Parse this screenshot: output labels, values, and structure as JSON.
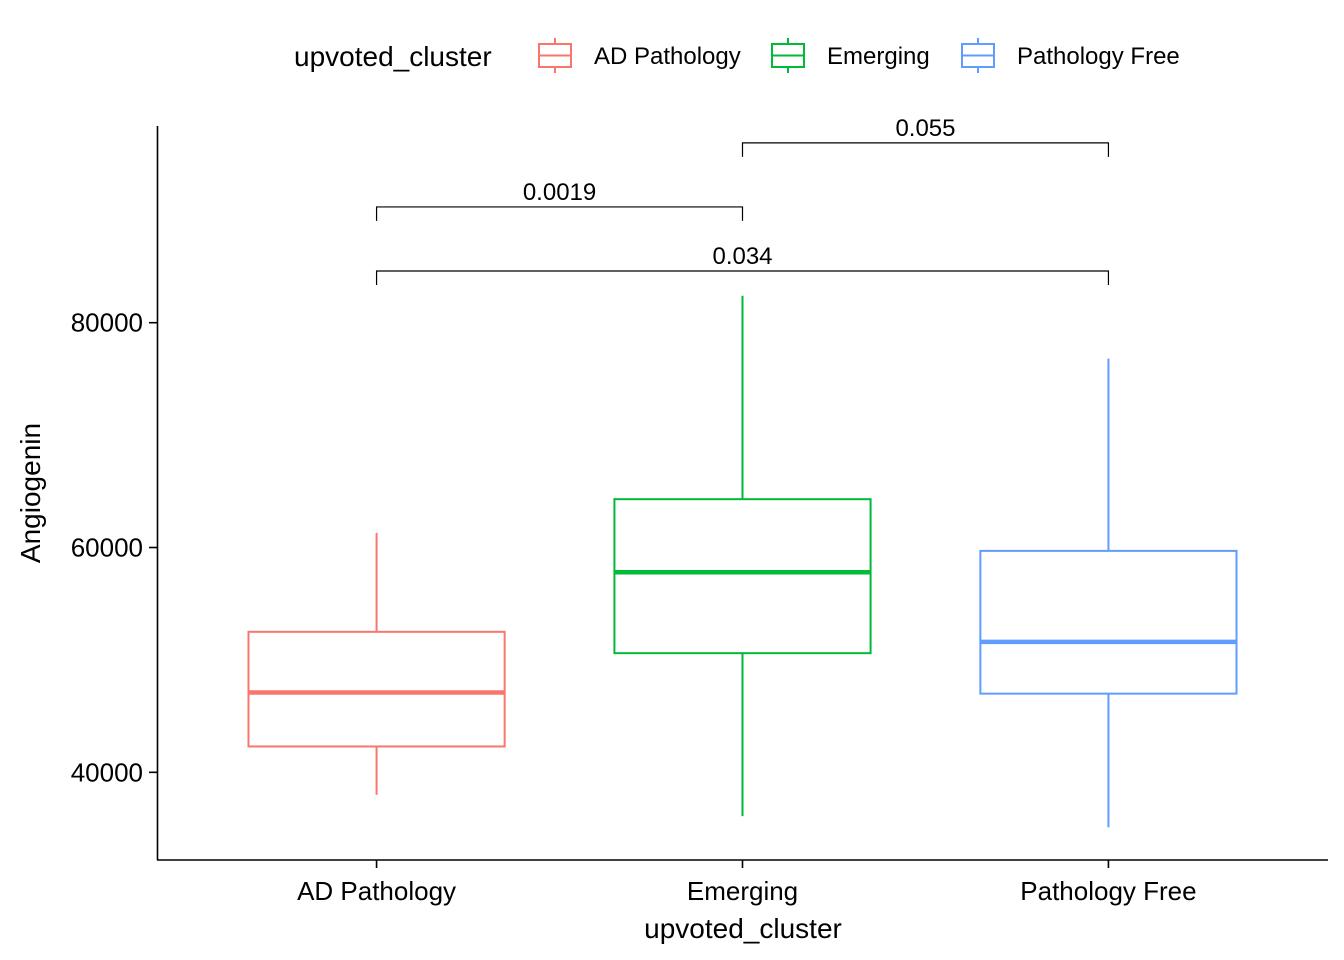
{
  "chart_data": {
    "type": "boxplot",
    "xlabel": "upvoted_cluster",
    "ylabel": "Angiogenin",
    "ylim": [
      32200,
      97500
    ],
    "yticks": [
      40000,
      60000,
      80000
    ],
    "categories": [
      "AD Pathology",
      "Emerging",
      "Pathology Free"
    ],
    "colors": [
      "#F8766D",
      "#00BA38",
      "#619CFF"
    ],
    "boxes": [
      {
        "category": "AD Pathology",
        "whisker_low": 38000,
        "q1": 42300,
        "median": 47100,
        "q3": 52500,
        "whisker_high": 61300
      },
      {
        "category": "Emerging",
        "whisker_low": 36100,
        "q1": 50600,
        "median": 57800,
        "q3": 64300,
        "whisker_high": 82400
      },
      {
        "category": "Pathology Free",
        "whisker_low": 35100,
        "q1": 47000,
        "median": 51600,
        "q3": 59700,
        "whisker_high": 76800
      }
    ],
    "legend": {
      "title": "upvoted_cluster",
      "position": "top",
      "entries": [
        "AD Pathology",
        "Emerging",
        "Pathology Free"
      ]
    },
    "comparisons": [
      {
        "from": "AD Pathology",
        "to": "Emerging",
        "label": "0.0019",
        "y": 90300
      },
      {
        "from": "Emerging",
        "to": "Pathology Free",
        "label": "0.055",
        "y": 96000
      },
      {
        "from": "AD Pathology",
        "to": "Pathology Free",
        "label": "0.034",
        "y": 84600
      }
    ]
  }
}
